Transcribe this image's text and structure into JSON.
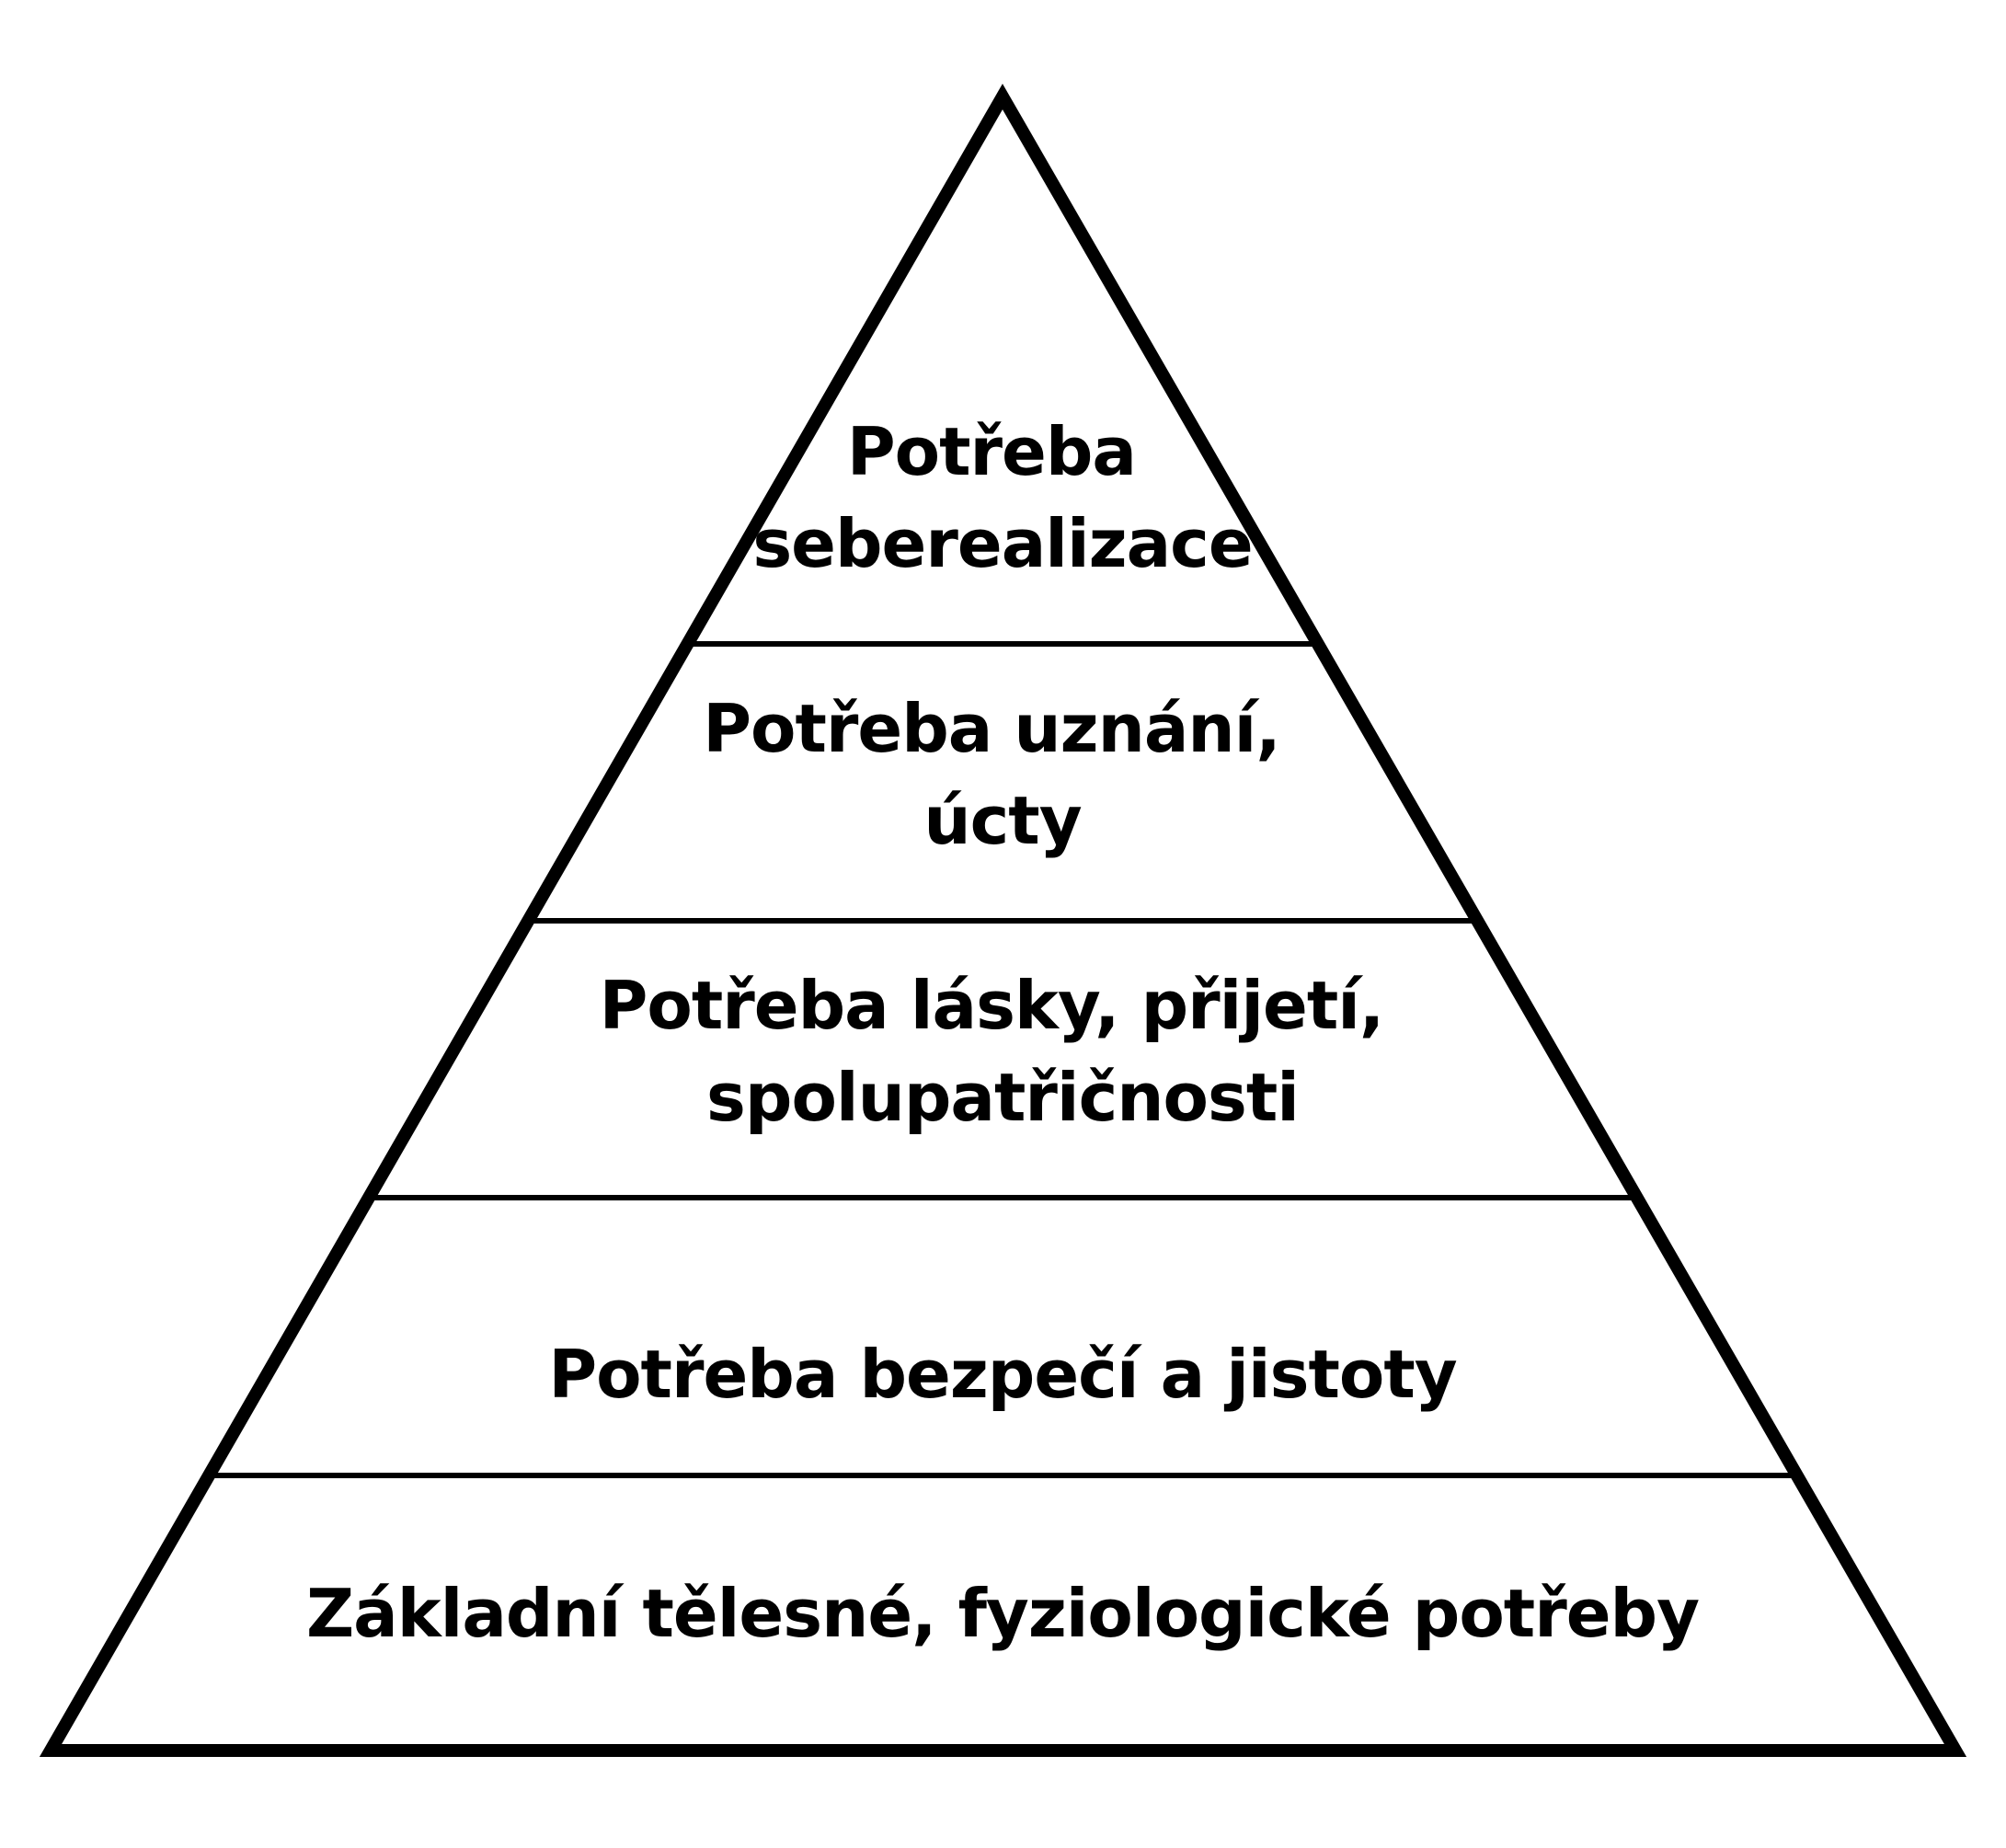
{
  "diagram": {
    "type": "pyramid",
    "stroke_color": "#000000",
    "fill_color": "#ffffff",
    "text_color": "#000000",
    "levels": [
      {
        "lines": [
          "Potřeba",
          "seberealizace"
        ]
      },
      {
        "lines": [
          "Potřeba uznání,",
          "úcty"
        ]
      },
      {
        "lines": [
          "Potřeba lásky, přijetí,",
          "spolupatřičnosti"
        ]
      },
      {
        "lines": [
          "Potřeba bezpečí a jistoty"
        ]
      },
      {
        "lines": [
          "Základní tělesné, fyziologické potřeby"
        ]
      }
    ]
  }
}
